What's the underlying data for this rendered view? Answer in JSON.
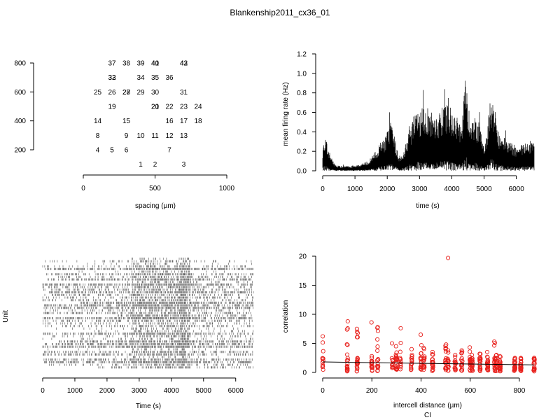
{
  "title": "Blankenship2011_cx36_01",
  "chart_data": [
    {
      "type": "scatter",
      "panel": "electrode-layout",
      "xlabel": "spacing (µm)",
      "ylabel": "",
      "xlim": [
        0,
        1000
      ],
      "ylim": [
        200,
        800
      ],
      "xticks": [
        "0",
        "500",
        "1000"
      ],
      "yticks": [
        "200",
        "400",
        "600",
        "800"
      ],
      "labels": [
        {
          "t": "37",
          "x": 200,
          "y": 800
        },
        {
          "t": "38",
          "x": 300,
          "y": 800
        },
        {
          "t": "39",
          "x": 400,
          "y": 800
        },
        {
          "t": "41",
          "x": 500,
          "y": 800
        },
        {
          "t": "40",
          "x": 500,
          "y": 800
        },
        {
          "t": "43",
          "x": 700,
          "y": 800
        },
        {
          "t": "42",
          "x": 700,
          "y": 800
        },
        {
          "t": "32",
          "x": 200,
          "y": 700
        },
        {
          "t": "33",
          "x": 200,
          "y": 700
        },
        {
          "t": "34",
          "x": 400,
          "y": 700
        },
        {
          "t": "35",
          "x": 500,
          "y": 700
        },
        {
          "t": "36",
          "x": 600,
          "y": 700
        },
        {
          "t": "25",
          "x": 100,
          "y": 600
        },
        {
          "t": "26",
          "x": 200,
          "y": 600
        },
        {
          "t": "27",
          "x": 300,
          "y": 600
        },
        {
          "t": "28",
          "x": 300,
          "y": 600
        },
        {
          "t": "29",
          "x": 400,
          "y": 600
        },
        {
          "t": "30",
          "x": 500,
          "y": 600
        },
        {
          "t": "31",
          "x": 700,
          "y": 600
        },
        {
          "t": "19",
          "x": 200,
          "y": 500
        },
        {
          "t": "20",
          "x": 500,
          "y": 500
        },
        {
          "t": "21",
          "x": 500,
          "y": 500
        },
        {
          "t": "22",
          "x": 600,
          "y": 500
        },
        {
          "t": "23",
          "x": 700,
          "y": 500
        },
        {
          "t": "24",
          "x": 800,
          "y": 500
        },
        {
          "t": "14",
          "x": 100,
          "y": 400
        },
        {
          "t": "15",
          "x": 300,
          "y": 400
        },
        {
          "t": "16",
          "x": 600,
          "y": 400
        },
        {
          "t": "17",
          "x": 700,
          "y": 400
        },
        {
          "t": "18",
          "x": 800,
          "y": 400
        },
        {
          "t": "8",
          "x": 100,
          "y": 300
        },
        {
          "t": "9",
          "x": 300,
          "y": 300
        },
        {
          "t": "10",
          "x": 400,
          "y": 300
        },
        {
          "t": "11",
          "x": 500,
          "y": 300
        },
        {
          "t": "12",
          "x": 600,
          "y": 300
        },
        {
          "t": "13",
          "x": 700,
          "y": 300
        },
        {
          "t": "4",
          "x": 100,
          "y": 200
        },
        {
          "t": "5",
          "x": 200,
          "y": 200
        },
        {
          "t": "6",
          "x": 300,
          "y": 200
        },
        {
          "t": "7",
          "x": 600,
          "y": 200
        },
        {
          "t": "1",
          "x": 400,
          "y": 100
        },
        {
          "t": "2",
          "x": 500,
          "y": 100
        },
        {
          "t": "3",
          "x": 700,
          "y": 100
        }
      ]
    },
    {
      "type": "area",
      "panel": "firing-rate",
      "xlabel": "time (s)",
      "ylabel": "mean firing rate (Hz)",
      "xlim": [
        0,
        6550
      ],
      "ylim": [
        0,
        1.2
      ],
      "xticks": [
        "0",
        "1000",
        "2000",
        "3000",
        "4000",
        "5000",
        "6000"
      ],
      "yticks": [
        "0.0",
        "0.2",
        "0.4",
        "0.6",
        "0.8",
        "1.0",
        "1.2"
      ],
      "envelope_x": [
        0,
        60,
        120,
        250,
        400,
        600,
        800,
        1000,
        1200,
        1400,
        1600,
        1800,
        1950,
        2100,
        2200,
        2350,
        2500,
        2700,
        2900,
        3100,
        3300,
        3500,
        3700,
        3900,
        4100,
        4250,
        4350,
        4420,
        4480,
        4560,
        4700,
        4850,
        5000,
        5100,
        5200,
        5300,
        5450,
        5600,
        5800,
        6000,
        6200,
        6400,
        6550
      ],
      "envelope_y": [
        0.22,
        0.35,
        0.3,
        0.15,
        0.06,
        0.05,
        0.05,
        0.06,
        0.07,
        0.1,
        0.18,
        0.3,
        0.36,
        0.5,
        0.4,
        0.15,
        0.2,
        0.45,
        0.6,
        0.65,
        0.62,
        0.58,
        0.65,
        0.7,
        0.55,
        0.5,
        0.6,
        1.1,
        0.8,
        0.5,
        0.55,
        0.5,
        0.25,
        0.4,
        0.85,
        0.7,
        0.4,
        0.35,
        0.3,
        0.25,
        0.3,
        0.32,
        0.3
      ]
    },
    {
      "type": "heatmap",
      "panel": "raster",
      "xlabel": "Time (s)",
      "ylabel": "Unit",
      "xlim": [
        0,
        6550
      ],
      "units": 43,
      "xticks": [
        "0",
        "1000",
        "2000",
        "3000",
        "4000",
        "5000",
        "6000"
      ]
    },
    {
      "type": "scatter",
      "panel": "correlation",
      "xlabel": "intercell distance (µm)",
      "ylabel": "correlation",
      "caption": "CI",
      "xlim": [
        0,
        860
      ],
      "ylim": [
        0,
        20
      ],
      "xticks": [
        "0",
        "200",
        "400",
        "600",
        "800"
      ],
      "yticks": [
        "0",
        "5",
        "10",
        "15",
        "20"
      ],
      "fit_line": {
        "x": [
          0,
          860
        ],
        "y": [
          1.8,
          1.3
        ]
      },
      "groups": [
        {
          "x": 0,
          "ymax": 6.2
        },
        {
          "x": 100,
          "ymax": 8.8
        },
        {
          "x": 141,
          "ymax": 7.5
        },
        {
          "x": 200,
          "ymax": 8.6
        },
        {
          "x": 224,
          "ymax": 7.8
        },
        {
          "x": 283,
          "ymax": 5.0
        },
        {
          "x": 300,
          "ymax": 4.5
        },
        {
          "x": 316,
          "ymax": 7.6
        },
        {
          "x": 361,
          "ymax": 4.0
        },
        {
          "x": 400,
          "ymax": 6.5
        },
        {
          "x": 412,
          "ymax": 4.2
        },
        {
          "x": 447,
          "ymax": 3.5
        },
        {
          "x": 500,
          "ymax": 4.8
        },
        {
          "x": 510,
          "ymax": 3.8
        },
        {
          "x": 539,
          "ymax": 3.0
        },
        {
          "x": 566,
          "ymax": 3.8
        },
        {
          "x": 600,
          "ymax": 4.3
        },
        {
          "x": 608,
          "ymax": 3.0
        },
        {
          "x": 640,
          "ymax": 3.2
        },
        {
          "x": 671,
          "ymax": 3.5
        },
        {
          "x": 700,
          "ymax": 5.3
        },
        {
          "x": 707,
          "ymax": 3.0
        },
        {
          "x": 721,
          "ymax": 2.8
        },
        {
          "x": 781,
          "ymax": 1.6
        },
        {
          "x": 806,
          "ymax": 1.4
        },
        {
          "x": 860,
          "ymax": 2.5
        }
      ],
      "outliers": [
        {
          "x": 510,
          "y": 19.7
        }
      ]
    }
  ]
}
